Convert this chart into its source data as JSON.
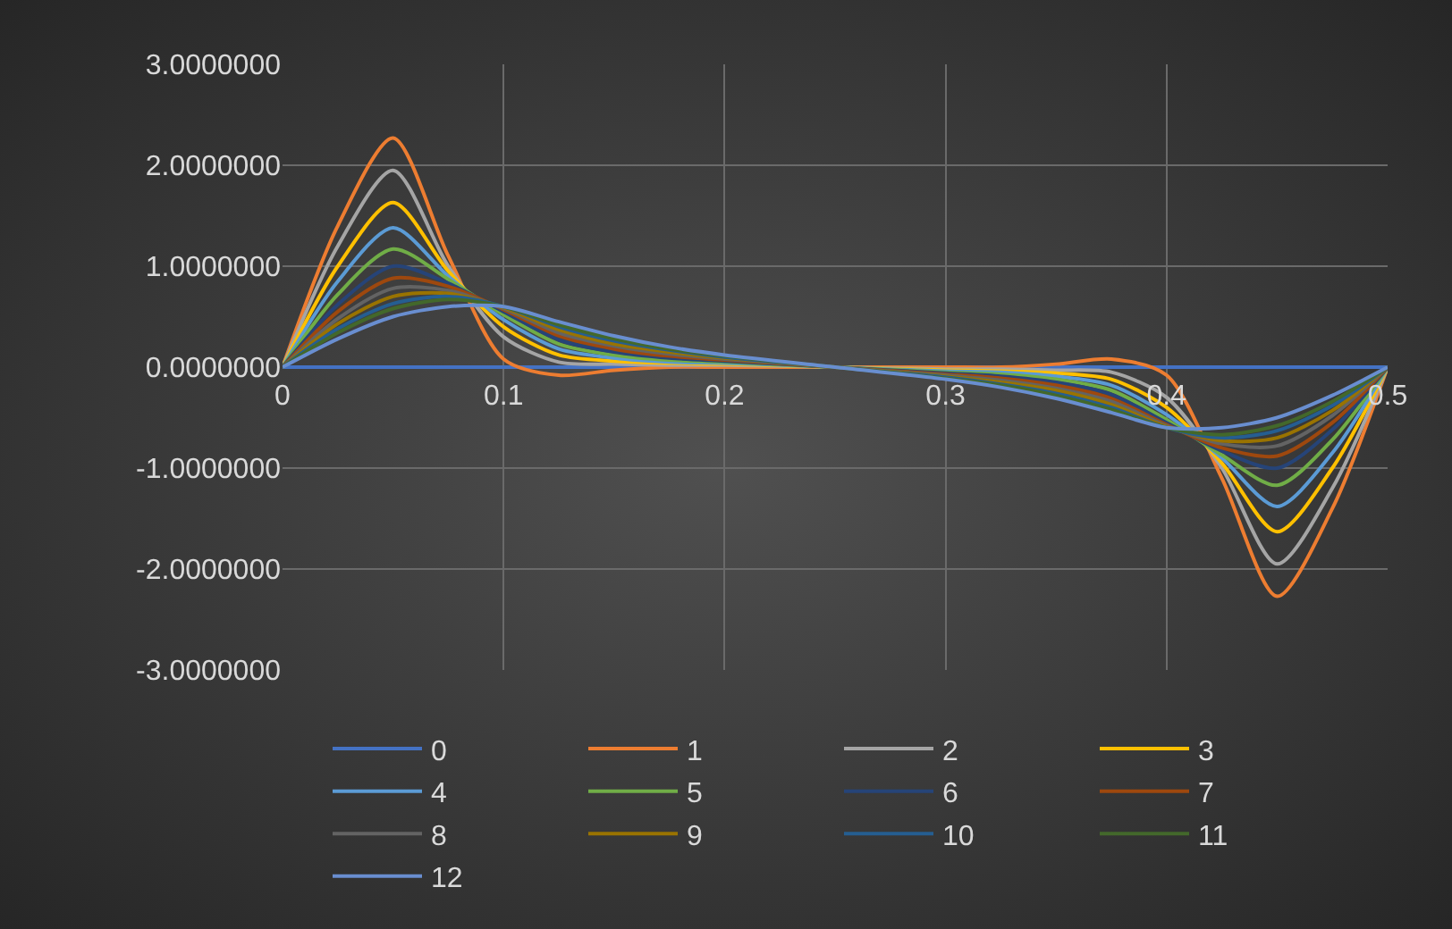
{
  "chart_data": {
    "type": "line",
    "x": [
      0,
      0.025,
      0.05,
      0.075,
      0.1,
      0.125,
      0.15,
      0.175,
      0.2,
      0.25,
      0.3,
      0.325,
      0.35,
      0.375,
      0.4,
      0.425,
      0.45,
      0.475,
      0.5
    ],
    "xlim": [
      0,
      0.5
    ],
    "xticks": [
      0,
      0.1,
      0.2,
      0.3,
      0.4,
      0.5
    ],
    "ylim": [
      -3,
      3
    ],
    "yticks": [
      {
        "value": 3,
        "label": "3.0000000"
      },
      {
        "value": 2,
        "label": "2.0000000"
      },
      {
        "value": 1,
        "label": "1.0000000"
      },
      {
        "value": 0,
        "label": "0.0000000"
      },
      {
        "value": -1,
        "label": "-1.0000000"
      },
      {
        "value": -2,
        "label": "-2.0000000"
      },
      {
        "value": -3,
        "label": "-3.0000000"
      }
    ],
    "grid": true,
    "legend": "bottom",
    "marker": "none",
    "line_style": "solid",
    "series": [
      {
        "name": "0",
        "color": "#4472c4",
        "values": [
          0,
          0,
          0,
          0,
          0,
          0,
          0,
          0,
          0,
          0,
          0,
          0,
          0,
          0,
          0,
          0,
          0,
          0,
          0
        ]
      },
      {
        "name": "1",
        "color": "#ed7d31",
        "values": [
          0,
          1.4,
          2.27,
          1.1,
          0.08,
          -0.08,
          -0.03,
          0,
          0,
          0,
          0,
          0,
          0.03,
          0.08,
          -0.08,
          -1.1,
          -2.27,
          -1.4,
          0
        ]
      },
      {
        "name": "2",
        "color": "#a5a5a5",
        "values": [
          0,
          1.2,
          1.95,
          1.0,
          0.3,
          0.05,
          0.03,
          0.02,
          0.02,
          0,
          -0.02,
          -0.02,
          -0.03,
          -0.05,
          -0.3,
          -1.0,
          -1.95,
          -1.2,
          0
        ]
      },
      {
        "name": "3",
        "color": "#ffc000",
        "values": [
          0,
          1.0,
          1.63,
          0.95,
          0.4,
          0.12,
          0.06,
          0.04,
          0.03,
          0,
          -0.03,
          -0.04,
          -0.06,
          -0.12,
          -0.4,
          -0.95,
          -1.63,
          -1.0,
          0
        ]
      },
      {
        "name": "4",
        "color": "#5b9bd5",
        "values": [
          0,
          0.85,
          1.38,
          0.9,
          0.47,
          0.18,
          0.09,
          0.05,
          0.04,
          0,
          -0.04,
          -0.05,
          -0.09,
          -0.18,
          -0.47,
          -0.9,
          -1.38,
          -0.85,
          0
        ]
      },
      {
        "name": "5",
        "color": "#70ad47",
        "values": [
          0,
          0.72,
          1.17,
          0.87,
          0.52,
          0.23,
          0.12,
          0.07,
          0.05,
          0,
          -0.05,
          -0.07,
          -0.12,
          -0.23,
          -0.52,
          -0.87,
          -1.17,
          -0.72,
          0
        ]
      },
      {
        "name": "6",
        "color": "#264478",
        "values": [
          0,
          0.62,
          1.0,
          0.83,
          0.55,
          0.27,
          0.15,
          0.09,
          0.06,
          0,
          -0.06,
          -0.09,
          -0.15,
          -0.27,
          -0.55,
          -0.83,
          -1.0,
          -0.62,
          0
        ]
      },
      {
        "name": "7",
        "color": "#9e480e",
        "values": [
          0,
          0.55,
          0.88,
          0.8,
          0.57,
          0.31,
          0.18,
          0.11,
          0.07,
          0,
          -0.07,
          -0.11,
          -0.18,
          -0.31,
          -0.57,
          -0.8,
          -0.88,
          -0.55,
          0
        ]
      },
      {
        "name": "8",
        "color": "#636363",
        "values": [
          0,
          0.48,
          0.78,
          0.76,
          0.58,
          0.34,
          0.21,
          0.13,
          0.08,
          0,
          -0.08,
          -0.13,
          -0.21,
          -0.34,
          -0.58,
          -0.76,
          -0.78,
          -0.48,
          0
        ]
      },
      {
        "name": "9",
        "color": "#997300",
        "values": [
          0,
          0.43,
          0.7,
          0.73,
          0.59,
          0.37,
          0.23,
          0.15,
          0.09,
          0,
          -0.09,
          -0.15,
          -0.23,
          -0.37,
          -0.59,
          -0.73,
          -0.7,
          -0.43,
          0
        ]
      },
      {
        "name": "10",
        "color": "#255e91",
        "values": [
          0,
          0.38,
          0.63,
          0.7,
          0.6,
          0.4,
          0.26,
          0.17,
          0.1,
          0,
          -0.1,
          -0.17,
          -0.26,
          -0.4,
          -0.6,
          -0.7,
          -0.63,
          -0.38,
          0
        ]
      },
      {
        "name": "11",
        "color": "#43682b",
        "values": [
          0,
          0.34,
          0.58,
          0.67,
          0.6,
          0.42,
          0.28,
          0.18,
          0.11,
          0,
          -0.11,
          -0.18,
          -0.28,
          -0.42,
          -0.6,
          -0.67,
          -0.58,
          -0.34,
          0
        ]
      },
      {
        "name": "12",
        "color": "#698ed0",
        "values": [
          0,
          0.28,
          0.5,
          0.6,
          0.6,
          0.45,
          0.31,
          0.2,
          0.12,
          0,
          -0.12,
          -0.2,
          -0.31,
          -0.45,
          -0.6,
          -0.6,
          -0.5,
          -0.28,
          0
        ]
      }
    ]
  }
}
